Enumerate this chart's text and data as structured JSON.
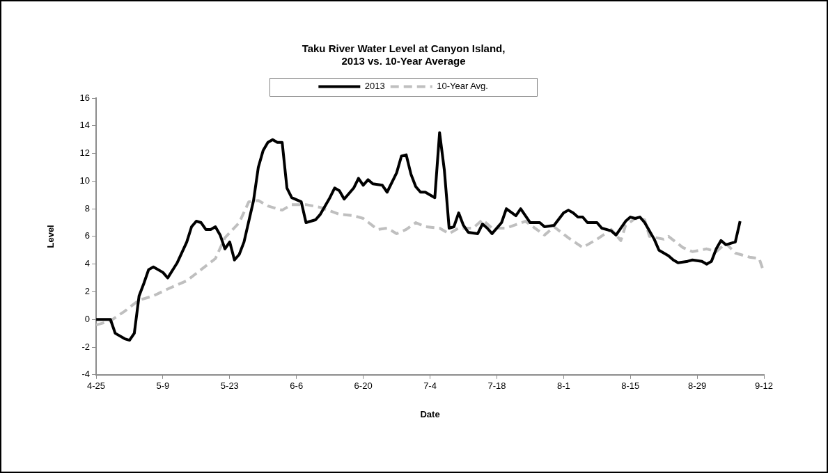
{
  "chart_data": {
    "type": "line",
    "title": "Taku River Water Level at Canyon Island,\n2013 vs. 10-Year Average",
    "xlabel": "Date",
    "ylabel": "Level",
    "xlim": [
      "--04-25",
      "--09-12"
    ],
    "xticks": [
      {
        "value": "--04-25",
        "label": "4-25"
      },
      {
        "value": "--05-09",
        "label": "5-9"
      },
      {
        "value": "--05-23",
        "label": "5-23"
      },
      {
        "value": "--06-06",
        "label": "6-6"
      },
      {
        "value": "--06-20",
        "label": "6-20"
      },
      {
        "value": "--07-04",
        "label": "7-4"
      },
      {
        "value": "--07-18",
        "label": "7-18"
      },
      {
        "value": "--08-01",
        "label": "8-1"
      },
      {
        "value": "--08-15",
        "label": "8-15"
      },
      {
        "value": "--08-29",
        "label": "8-29"
      },
      {
        "value": "--09-12",
        "label": "9-12"
      }
    ],
    "ylim": [
      -4,
      16
    ],
    "yticks": [
      -4,
      -2,
      0,
      2,
      4,
      6,
      8,
      10,
      12,
      14,
      16
    ],
    "grid": false,
    "legend": "top",
    "marker": "none",
    "series": [
      {
        "name": "2013",
        "color": "#000000",
        "line_style": "solid",
        "x": [
          "--04-25",
          "--04-28",
          "--04-29",
          "--05-01",
          "--05-02",
          "--05-03",
          "--05-04",
          "--05-05",
          "--05-06",
          "--05-07",
          "--05-09",
          "--05-10",
          "--05-12",
          "--05-14",
          "--05-15",
          "--05-16",
          "--05-17",
          "--05-18",
          "--05-19",
          "--05-20",
          "--05-21",
          "--05-22",
          "--05-23",
          "--05-24",
          "--05-25",
          "--05-26",
          "--05-28",
          "--05-29",
          "--05-30",
          "--05-31",
          "--06-01",
          "--06-02",
          "--06-03",
          "--06-04",
          "--06-05",
          "--06-07",
          "--06-08",
          "--06-10",
          "--06-11",
          "--06-13",
          "--06-14",
          "--06-15",
          "--06-16",
          "--06-18",
          "--06-19",
          "--06-20",
          "--06-21",
          "--06-22",
          "--06-24",
          "--06-25",
          "--06-27",
          "--06-28",
          "--06-29",
          "--06-30",
          "--07-01",
          "--07-02",
          "--07-03",
          "--07-05",
          "--07-06",
          "--07-07",
          "--07-08",
          "--07-09",
          "--07-10",
          "--07-11",
          "--07-12",
          "--07-14",
          "--07-15",
          "--07-16",
          "--07-17",
          "--07-19",
          "--07-20",
          "--07-22",
          "--07-23",
          "--07-24",
          "--07-25",
          "--07-27",
          "--07-28",
          "--07-30",
          "--08-01",
          "--08-02",
          "--08-03",
          "--08-04",
          "--08-05",
          "--08-06",
          "--08-08",
          "--08-09",
          "--08-11",
          "--08-12",
          "--08-14",
          "--08-15",
          "--08-16",
          "--08-17",
          "--08-18",
          "--08-20",
          "--08-21",
          "--08-23",
          "--08-24",
          "--08-25",
          "--08-27",
          "--08-28",
          "--08-30",
          "--08-31",
          "--09-01",
          "--09-02",
          "--09-03",
          "--09-04",
          "--09-06",
          "--09-07"
        ],
        "values": [
          0,
          0,
          -1.0,
          -1.4,
          -1.5,
          -1.0,
          1.7,
          2.6,
          3.6,
          3.8,
          3.4,
          3.0,
          4.1,
          5.6,
          6.7,
          7.1,
          7.0,
          6.5,
          6.5,
          6.7,
          6.1,
          5.1,
          5.6,
          4.3,
          4.7,
          5.6,
          8.6,
          11.0,
          12.2,
          12.8,
          13.0,
          12.8,
          12.8,
          9.5,
          8.8,
          8.5,
          7.0,
          7.2,
          7.6,
          8.8,
          9.5,
          9.3,
          8.7,
          9.5,
          10.2,
          9.7,
          10.1,
          9.8,
          9.7,
          9.2,
          10.6,
          11.8,
          11.9,
          10.5,
          9.6,
          9.2,
          9.2,
          8.8,
          13.5,
          10.8,
          6.6,
          6.7,
          7.7,
          6.8,
          6.3,
          6.2,
          6.9,
          6.6,
          6.2,
          7.0,
          8.0,
          7.5,
          8.0,
          7.5,
          7.0,
          7.0,
          6.7,
          6.8,
          7.7,
          7.9,
          7.7,
          7.4,
          7.4,
          7.0,
          7.0,
          6.6,
          6.4,
          6.1,
          7.1,
          7.4,
          7.3,
          7.4,
          7.0,
          5.8,
          5.0,
          4.6,
          4.3,
          4.1,
          4.2,
          4.3,
          4.2,
          4.0,
          4.2,
          5.1,
          5.7,
          5.4,
          5.6,
          7.1
        ]
      },
      {
        "name": "10-Year Avg.",
        "color": "#bfbfbf",
        "line_style": "dashed",
        "x": [
          "--04-25",
          "--04-28",
          "--05-01",
          "--05-04",
          "--05-07",
          "--05-10",
          "--05-14",
          "--05-17",
          "--05-20",
          "--05-22",
          "--05-25",
          "--05-27",
          "--05-29",
          "--05-31",
          "--06-03",
          "--06-05",
          "--06-08",
          "--06-11",
          "--06-15",
          "--06-18",
          "--06-20",
          "--06-23",
          "--06-25",
          "--06-27",
          "--06-29",
          "--07-01",
          "--07-03",
          "--07-06",
          "--07-08",
          "--07-10",
          "--07-13",
          "--07-15",
          "--07-17",
          "--07-20",
          "--07-24",
          "--07-28",
          "--07-30",
          "--08-02",
          "--08-05",
          "--08-08",
          "--08-11",
          "--08-13",
          "--08-14",
          "--08-16",
          "--08-18",
          "--08-19",
          "--08-22",
          "--08-23",
          "--08-26",
          "--08-28",
          "--08-31",
          "--09-02",
          "--09-04",
          "--09-06",
          "--09-09",
          "--09-11",
          "--09-12"
        ],
        "values": [
          -0.4,
          -0.1,
          0.6,
          1.4,
          1.7,
          2.2,
          2.8,
          3.6,
          4.4,
          5.9,
          7.0,
          8.5,
          8.6,
          8.2,
          7.9,
          8.3,
          8.3,
          8.1,
          7.6,
          7.5,
          7.3,
          6.5,
          6.6,
          6.2,
          6.5,
          7.0,
          6.7,
          6.6,
          6.2,
          6.6,
          6.6,
          7.2,
          6.6,
          6.6,
          7.1,
          6.1,
          6.7,
          5.9,
          5.2,
          5.8,
          6.5,
          5.7,
          6.8,
          7.3,
          7.2,
          6.0,
          5.8,
          6.0,
          5.2,
          4.9,
          5.1,
          4.9,
          5.5,
          4.8,
          4.5,
          4.4,
          3.4
        ]
      }
    ]
  }
}
